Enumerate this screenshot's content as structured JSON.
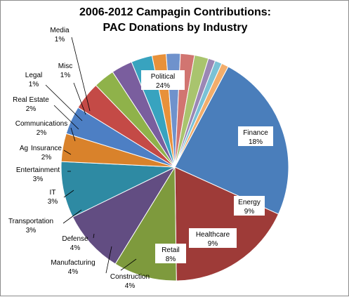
{
  "chart_data": {
    "type": "pie",
    "title": "2006-2012 Campagin Contributions:",
    "subtitle": "PAC Donations by Industry",
    "slices": [
      {
        "label": "Political",
        "value": 24,
        "pct_label": "24%",
        "color": "#4a7ebb"
      },
      {
        "label": "Finance",
        "value": 18,
        "pct_label": "18%",
        "color": "#9e3b38"
      },
      {
        "label": "Energy",
        "value": 9,
        "pct_label": "9%",
        "color": "#7e9a3d"
      },
      {
        "label": "Healthcare",
        "value": 9,
        "pct_label": "9%",
        "color": "#624d82"
      },
      {
        "label": "Retail",
        "value": 8,
        "pct_label": "8%",
        "color": "#2e8aa3"
      },
      {
        "label": "Construction",
        "value": 4,
        "pct_label": "4%",
        "color": "#d9822b"
      },
      {
        "label": "Manufacturing",
        "value": 4,
        "pct_label": "4%",
        "color": "#4d7fc4"
      },
      {
        "label": "Defense",
        "value": 4,
        "pct_label": "4%",
        "color": "#c44a46"
      },
      {
        "label": "Transportation",
        "value": 3,
        "pct_label": "3%",
        "color": "#8fb24a"
      },
      {
        "label": "IT",
        "value": 3,
        "pct_label": "3%",
        "color": "#7a5e9e"
      },
      {
        "label": "Entertainment",
        "value": 3,
        "pct_label": "3%",
        "color": "#38a3bf"
      },
      {
        "label": "Insurance",
        "value": 2,
        "pct_label": "2%",
        "color": "#e8913a"
      },
      {
        "label": "Ag",
        "value": 2,
        "pct_label": "",
        "color": "#6f92cc"
      },
      {
        "label": "Communications",
        "value": 2,
        "pct_label": "2%",
        "color": "#d17571"
      },
      {
        "label": "Real Estate",
        "value": 2,
        "pct_label": "2%",
        "color": "#a9c46e"
      },
      {
        "label": "Legal",
        "value": 1,
        "pct_label": "1%",
        "color": "#9b87b5"
      },
      {
        "label": "Misc",
        "value": 1,
        "pct_label": "1%",
        "color": "#7ac2d6"
      },
      {
        "label": "Media",
        "value": 1,
        "pct_label": "1%",
        "color": "#f2ad6b"
      }
    ]
  }
}
